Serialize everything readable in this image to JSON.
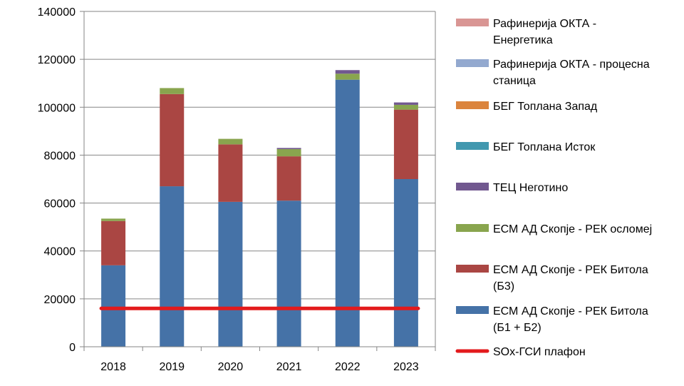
{
  "chart_data": {
    "type": "bar",
    "stacked": true,
    "categories": [
      "2018",
      "2019",
      "2020",
      "2021",
      "2022",
      "2023"
    ],
    "ylim": [
      0,
      140000
    ],
    "yticks": [
      "0",
      "20000",
      "40000",
      "60000",
      "80000",
      "100000",
      "120000",
      "140000"
    ],
    "grid": true,
    "legend_position": "right",
    "series": [
      {
        "name": "ЕСМ АД Скопје - РЕК Битола (Б1 + Б2)",
        "name_lines": [
          "ЕСМ АД Скопје - РЕК Битола",
          "(Б1 + Б2)"
        ],
        "color": "#4572A7",
        "values": [
          34000,
          67000,
          60500,
          61000,
          111500,
          70000
        ]
      },
      {
        "name": "ЕСМ АД Скопје - РЕК Битола (Б3)",
        "name_lines": [
          "ЕСМ АД Скопје - РЕК Битола",
          "(Б3)"
        ],
        "color": "#AA4643",
        "values": [
          18500,
          38500,
          24000,
          18500,
          0,
          29000
        ]
      },
      {
        "name": "ЕСМ АД Скопје - РЕК осломеј",
        "name_lines": [
          "ЕСМ АД Скопје - РЕК осломеј"
        ],
        "color": "#89A54E",
        "values": [
          1000,
          2500,
          2300,
          3000,
          2500,
          2000
        ]
      },
      {
        "name": "ТЕЦ Неготино",
        "name_lines": [
          "ТЕЦ Неготино"
        ],
        "color": "#71588F",
        "values": [
          0,
          0,
          0,
          500,
          1500,
          1000
        ]
      },
      {
        "name": "БЕГ Топлана Исток",
        "name_lines": [
          "БЕГ Топлана Исток"
        ],
        "color": "#4198AF",
        "values": [
          0,
          0,
          0,
          0,
          0,
          0
        ]
      },
      {
        "name": "БЕГ Топлана Запад",
        "name_lines": [
          "БЕГ Топлана Запад"
        ],
        "color": "#DB843D",
        "values": [
          0,
          0,
          0,
          0,
          0,
          0
        ]
      },
      {
        "name": "Рафинерија ОКТА - процесна станица",
        "name_lines": [
          "Рафинерија ОКТА - процесна",
          "станица"
        ],
        "color": "#93A9CF",
        "values": [
          0,
          0,
          0,
          0,
          0,
          0
        ]
      },
      {
        "name": "Рафинерија ОКТА - Енергетика",
        "name_lines": [
          "Рафинерија ОКТА -",
          "Енергетика"
        ],
        "color": "#D99694",
        "values": [
          0,
          0,
          0,
          0,
          0,
          0
        ]
      }
    ],
    "line_series": [
      {
        "name": "SOx-ГСИ плафон",
        "name_lines": [
          "SOx-ГСИ плафон"
        ],
        "color": "#E31A1C",
        "values": [
          16000,
          16000,
          16000,
          16000,
          16000,
          16000
        ]
      }
    ]
  }
}
